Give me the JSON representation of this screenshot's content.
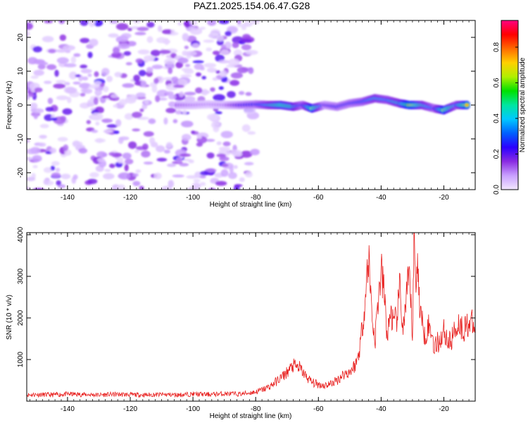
{
  "title": "PAZ1.2025.154.06.47.G28",
  "chart_data": [
    {
      "type": "heatmap",
      "xlabel": "Height of straight line (km)",
      "ylabel": "Frequency (Hz)",
      "xlim": [
        -153,
        -10
      ],
      "ylim": [
        -25,
        25
      ],
      "xticks": [
        -140,
        -120,
        -100,
        -80,
        -60,
        -40,
        -20
      ],
      "yticks": [
        -20,
        -10,
        0,
        10,
        20
      ],
      "colorbar": {
        "label": "Normalized spectral amplitude",
        "range": [
          0,
          0.95
        ],
        "ticks": [
          0.0,
          0.2,
          0.4,
          0.6,
          0.8
        ],
        "colormap": [
          "#f2e8ff",
          "#c9a0ff",
          "#8a2be2",
          "#2b00ff",
          "#0060ff",
          "#00c8ff",
          "#00e6a0",
          "#00e000",
          "#b0f000",
          "#ffd000",
          "#ff6a00",
          "#ff0000",
          "#ff0080"
        ]
      },
      "noise_region_x": [
        -153,
        -80
      ],
      "signal_track": [
        {
          "x": -105,
          "f": 0.0,
          "amp": 0.15
        },
        {
          "x": -100,
          "f": 0.0,
          "amp": 0.12
        },
        {
          "x": -95,
          "f": 0.2,
          "amp": 0.1
        },
        {
          "x": -90,
          "f": 0.0,
          "amp": 0.12
        },
        {
          "x": -85,
          "f": 0.0,
          "amp": 0.25
        },
        {
          "x": -80,
          "f": 0.2,
          "amp": 0.3
        },
        {
          "x": -76,
          "f": 0.0,
          "amp": 0.45
        },
        {
          "x": -72,
          "f": 0.0,
          "amp": 0.6
        },
        {
          "x": -68,
          "f": -0.5,
          "amp": 0.55
        },
        {
          "x": -65,
          "f": 0.0,
          "amp": 0.35
        },
        {
          "x": -62,
          "f": -1.0,
          "amp": 0.7
        },
        {
          "x": -58,
          "f": 0.0,
          "amp": 0.25
        },
        {
          "x": -54,
          "f": -0.5,
          "amp": 0.3
        },
        {
          "x": -50,
          "f": 0.5,
          "amp": 0.3
        },
        {
          "x": -46,
          "f": 1.0,
          "amp": 0.35
        },
        {
          "x": -42,
          "f": 2.0,
          "amp": 0.45
        },
        {
          "x": -38,
          "f": 1.5,
          "amp": 0.4
        },
        {
          "x": -34,
          "f": 0.5,
          "amp": 0.5
        },
        {
          "x": -31,
          "f": 0.0,
          "amp": 0.8
        },
        {
          "x": -27,
          "f": 0.0,
          "amp": 0.5
        },
        {
          "x": -23,
          "f": -1.0,
          "amp": 0.35
        },
        {
          "x": -20,
          "f": -1.5,
          "amp": 0.7
        },
        {
          "x": -16,
          "f": 0.0,
          "amp": 0.4
        },
        {
          "x": -12,
          "f": 0.0,
          "amp": 0.85
        }
      ]
    },
    {
      "type": "line",
      "xlabel": "Height of straight line (km)",
      "ylabel": "SNR (10 * v/v)",
      "xlim": [
        -153,
        -10
      ],
      "ylim": [
        0,
        4050
      ],
      "xticks": [
        -140,
        -120,
        -100,
        -80,
        -60,
        -40,
        -20
      ],
      "yticks": [
        1000,
        2000,
        3000,
        4000
      ],
      "series": [
        {
          "color": "#e8201f",
          "x": [
            -153,
            -150,
            -145,
            -140,
            -135,
            -130,
            -125,
            -120,
            -115,
            -110,
            -105,
            -100,
            -95,
            -90,
            -85,
            -80,
            -77,
            -75,
            -73,
            -71,
            -70,
            -68,
            -66,
            -64,
            -62,
            -60,
            -58,
            -56,
            -54,
            -52,
            -50,
            -48,
            -47,
            -46,
            -45,
            -44,
            -43,
            -42,
            -41,
            -40,
            -39,
            -38,
            -37,
            -36,
            -35,
            -34,
            -33,
            -32,
            -31,
            -30,
            -29.5,
            -29,
            -28.5,
            -28,
            -27,
            -26,
            -25,
            -24,
            -23,
            -22,
            -21,
            -20,
            -19,
            -18,
            -17,
            -16,
            -15,
            -14,
            -13,
            -12,
            -11,
            -10
          ],
          "y": [
            150,
            160,
            150,
            170,
            160,
            150,
            165,
            155,
            150,
            160,
            150,
            170,
            160,
            180,
            170,
            220,
            300,
            380,
            500,
            620,
            700,
            850,
            800,
            600,
            450,
            400,
            380,
            420,
            500,
            650,
            700,
            900,
            1200,
            1800,
            2500,
            3500,
            2200,
            1400,
            2400,
            3100,
            2600,
            1500,
            2200,
            1800,
            2000,
            2700,
            1700,
            2400,
            3000,
            1600,
            4000,
            2800,
            3500,
            2600,
            1900,
            1600,
            1800,
            1700,
            1300,
            1400,
            1500,
            1700,
            1500,
            1400,
            1600,
            1800,
            1900,
            1700,
            1800,
            1900,
            1850,
            1700
          ]
        }
      ]
    }
  ]
}
